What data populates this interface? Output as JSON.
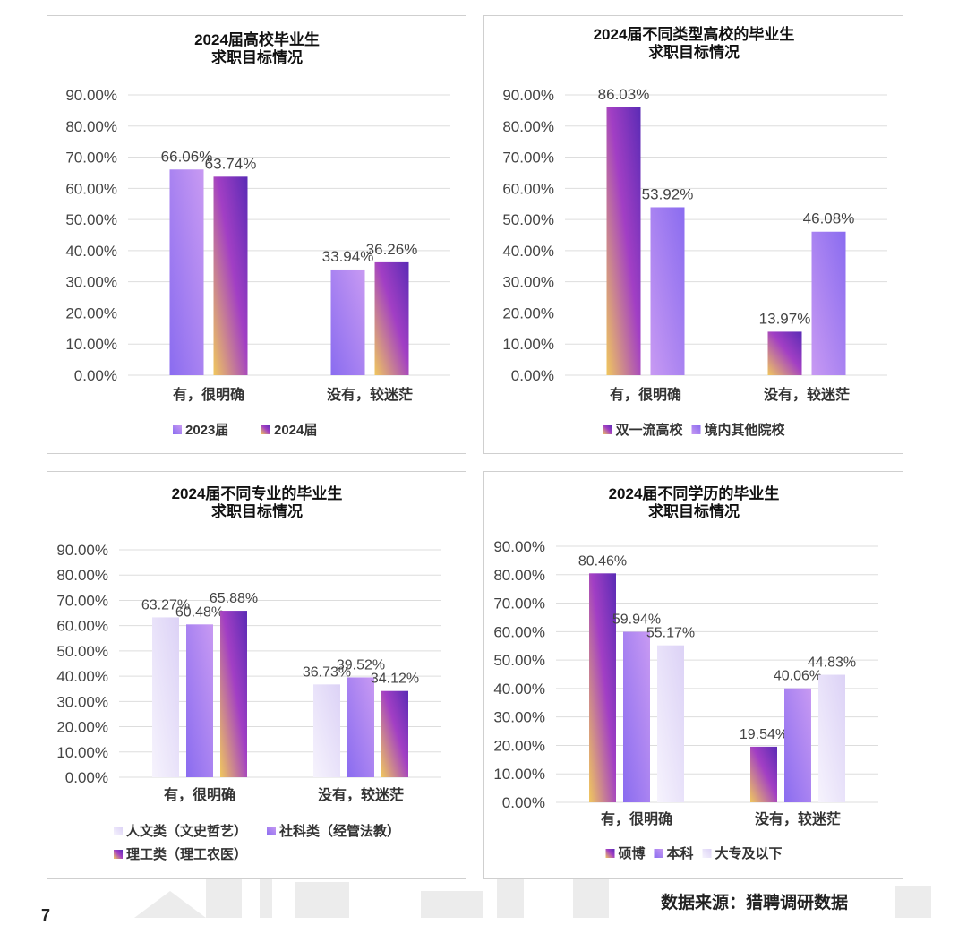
{
  "colors": {
    "purple": "#8a6cf0",
    "lavender": "#c89af2",
    "pale": "#ece6fb",
    "gold": "#f0c75e",
    "magenta": "#a23fc4",
    "deep_purple": "#5a2bb5",
    "grid": "#dddddd",
    "text": "#444444"
  },
  "footer": {
    "source": "数据来源：猎聘调研数据",
    "page_number": "7"
  },
  "chart_data": [
    {
      "type": "bar",
      "title": "2024届高校毕业生\n求职目标情况",
      "categories": [
        "有，很明确",
        "没有，较迷茫"
      ],
      "yticks": [
        "0.00%",
        "10.00%",
        "20.00%",
        "30.00%",
        "40.00%",
        "50.00%",
        "60.00%",
        "70.00%",
        "80.00%",
        "90.00%"
      ],
      "ylim": [
        0,
        90
      ],
      "series": [
        {
          "name": "2023届",
          "values": [
            66.06,
            33.94
          ],
          "labels": [
            "66.06%",
            "33.94%"
          ],
          "style": "purple_lavender"
        },
        {
          "name": "2024届",
          "values": [
            63.74,
            36.26
          ],
          "labels": [
            "63.74%",
            "36.26%"
          ],
          "style": "gold_magenta"
        }
      ],
      "legend": "bottom",
      "grid": true
    },
    {
      "type": "bar",
      "title": "2024届不同类型高校的毕业生\n求职目标情况",
      "categories": [
        "有，很明确",
        "没有，较迷茫"
      ],
      "yticks": [
        "0.00%",
        "10.00%",
        "20.00%",
        "30.00%",
        "40.00%",
        "50.00%",
        "60.00%",
        "70.00%",
        "80.00%",
        "90.00%"
      ],
      "ylim": [
        0,
        90
      ],
      "series": [
        {
          "name": "双一流高校",
          "values": [
            86.03,
            13.97
          ],
          "labels": [
            "86.03%",
            "13.97%"
          ],
          "style": "gold_magenta"
        },
        {
          "name": "境内其他院校",
          "values": [
            53.92,
            46.08
          ],
          "labels": [
            "53.92%",
            "46.08%"
          ],
          "style": "lavender_purple"
        }
      ],
      "legend": "bottom",
      "grid": true
    },
    {
      "type": "bar",
      "title": "2024届不同专业的毕业生\n求职目标情况",
      "categories": [
        "有，很明确",
        "没有，较迷茫"
      ],
      "yticks": [
        "0.00%",
        "10.00%",
        "20.00%",
        "30.00%",
        "40.00%",
        "50.00%",
        "60.00%",
        "70.00%",
        "80.00%",
        "90.00%"
      ],
      "ylim": [
        0,
        90
      ],
      "series": [
        {
          "name": "人文类（文史哲艺）",
          "values": [
            63.27,
            36.73
          ],
          "labels": [
            "63.27%",
            "36.73%"
          ],
          "style": "pale"
        },
        {
          "name": "社科类（经管法教）",
          "values": [
            60.48,
            39.52
          ],
          "labels": [
            "60.48%",
            "39.52%"
          ],
          "style": "purple_lavender"
        },
        {
          "name": "理工类（理工农医）",
          "values": [
            65.88,
            34.12
          ],
          "labels": [
            "65.88%",
            "34.12%"
          ],
          "style": "gold_magenta"
        }
      ],
      "legend": "bottom",
      "grid": true
    },
    {
      "type": "bar",
      "title": "2024届不同学历的毕业生\n求职目标情况",
      "categories": [
        "有，很明确",
        "没有，较迷茫"
      ],
      "yticks": [
        "0.00%",
        "10.00%",
        "20.00%",
        "30.00%",
        "40.00%",
        "50.00%",
        "60.00%",
        "70.00%",
        "80.00%",
        "90.00%"
      ],
      "ylim": [
        0,
        90
      ],
      "series": [
        {
          "name": "硕博",
          "values": [
            80.46,
            19.54
          ],
          "labels": [
            "80.46%",
            "19.54%"
          ],
          "style": "gold_magenta"
        },
        {
          "name": "本科",
          "values": [
            59.94,
            40.06
          ],
          "labels": [
            "59.94%",
            "40.06%"
          ],
          "style": "purple_lavender"
        },
        {
          "name": "大专及以下",
          "values": [
            55.17,
            44.83
          ],
          "labels": [
            "55.17%",
            "44.83%"
          ],
          "style": "pale"
        }
      ],
      "legend": "bottom",
      "grid": true
    }
  ]
}
